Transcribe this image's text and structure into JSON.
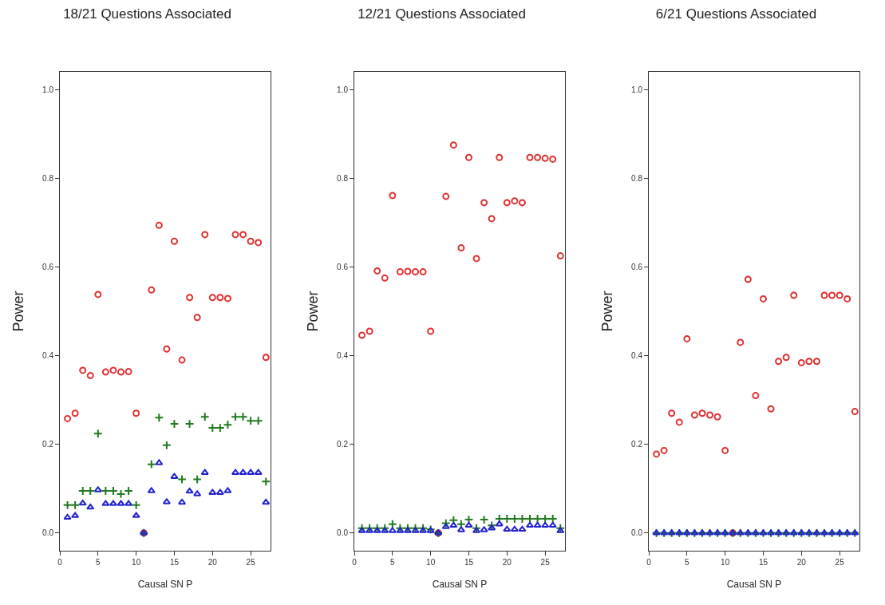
{
  "chart_data": [
    {
      "type": "scatter",
      "title": "18/21 Questions Associated",
      "xlabel": "Causal SN P",
      "ylabel": "Power",
      "x": [
        1,
        2,
        3,
        4,
        5,
        6,
        7,
        8,
        9,
        10,
        11,
        12,
        13,
        14,
        15,
        16,
        17,
        18,
        19,
        20,
        21,
        22,
        23,
        24,
        25,
        26,
        27
      ],
      "xlim": [
        0,
        27.6
      ],
      "xticks": [
        0,
        5,
        10,
        15,
        20,
        25
      ],
      "ylim": [
        -0.04,
        1.04
      ],
      "yticks": [
        {
          "value": 0,
          "label": "0.0"
        },
        {
          "value": 0.2,
          "label": "0.2"
        },
        {
          "value": 0.4,
          "label": "0.4"
        },
        {
          "value": 0.6,
          "label": "0.6"
        },
        {
          "value": 0.8,
          "label": "0.8"
        },
        {
          "value": 1,
          "label": "1.0"
        }
      ],
      "grid": false,
      "series": [
        {
          "color": "#e03030",
          "marker": "circle",
          "values": [
            0.258,
            0.27,
            0.367,
            0.355,
            0.538,
            0.363,
            0.367,
            0.363,
            0.364,
            0.27,
            0,
            0.548,
            0.694,
            0.415,
            0.658,
            0.39,
            0.531,
            0.486,
            0.673,
            0.531,
            0.531,
            0.529,
            0.673,
            0.673,
            0.658,
            0.655,
            0.396
          ]
        },
        {
          "color": "#1f7a1f",
          "marker": "cross",
          "values": [
            0.063,
            0.063,
            0.095,
            0.095,
            0.224,
            0.095,
            0.095,
            0.088,
            0.095,
            0.063,
            0,
            0.155,
            0.26,
            0.198,
            0.246,
            0.121,
            0.246,
            0.121,
            0.262,
            0.237,
            0.237,
            0.244,
            0.262,
            0.262,
            0.253,
            0.253,
            0.116
          ]
        },
        {
          "color": "#2020d0",
          "marker": "triangle",
          "values": [
            0.035,
            0.039,
            0.067,
            0.058,
            0.097,
            0.066,
            0.066,
            0.066,
            0.066,
            0.039,
            0,
            0.095,
            0.158,
            0.07,
            0.127,
            0.069,
            0.094,
            0.088,
            0.136,
            0.091,
            0.091,
            0.095,
            0.136,
            0.136,
            0.136,
            0.136,
            0.069
          ]
        }
      ]
    },
    {
      "type": "scatter",
      "title": "12/21 Questions Associated",
      "xlabel": "Causal SN P",
      "ylabel": "Power",
      "x": [
        1,
        2,
        3,
        4,
        5,
        6,
        7,
        8,
        9,
        10,
        11,
        12,
        13,
        14,
        15,
        16,
        17,
        18,
        19,
        20,
        21,
        22,
        23,
        24,
        25,
        26,
        27
      ],
      "xlim": [
        0,
        27.6
      ],
      "xticks": [
        0,
        5,
        10,
        15,
        20,
        25
      ],
      "ylim": [
        -0.04,
        1.04
      ],
      "yticks": [
        {
          "value": 0,
          "label": "0.0"
        },
        {
          "value": 0.2,
          "label": "0.2"
        },
        {
          "value": 0.4,
          "label": "0.4"
        },
        {
          "value": 0.6,
          "label": "0.6"
        },
        {
          "value": 0.8,
          "label": "0.8"
        },
        {
          "value": 1,
          "label": "1.0"
        }
      ],
      "grid": false,
      "series": [
        {
          "color": "#e03030",
          "marker": "circle",
          "values": [
            0.446,
            0.455,
            0.591,
            0.575,
            0.761,
            0.589,
            0.59,
            0.589,
            0.589,
            0.455,
            0,
            0.759,
            0.875,
            0.643,
            0.847,
            0.619,
            0.745,
            0.709,
            0.847,
            0.745,
            0.749,
            0.745,
            0.847,
            0.847,
            0.845,
            0.843,
            0.625
          ]
        },
        {
          "color": "#1f7a1f",
          "marker": "cross",
          "values": [
            0.011,
            0.011,
            0.011,
            0.011,
            0.02,
            0.011,
            0.011,
            0.011,
            0.011,
            0.008,
            0,
            0.022,
            0.029,
            0.02,
            0.03,
            0.011,
            0.03,
            0.017,
            0.032,
            0.032,
            0.032,
            0.032,
            0.032,
            0.032,
            0.032,
            0.032,
            0.011
          ]
        },
        {
          "color": "#2020d0",
          "marker": "triangle",
          "values": [
            0.005,
            0.005,
            0.005,
            0.005,
            0.005,
            0.005,
            0.005,
            0.005,
            0.005,
            0.005,
            0,
            0.014,
            0.017,
            0.007,
            0.017,
            0.005,
            0.007,
            0.011,
            0.02,
            0.008,
            0.008,
            0.008,
            0.017,
            0.017,
            0.017,
            0.017,
            0.005
          ]
        }
      ]
    },
    {
      "type": "scatter",
      "title": "6/21 Questions Associated",
      "xlabel": "Causal SN P",
      "ylabel": "Power",
      "x": [
        1,
        2,
        3,
        4,
        5,
        6,
        7,
        8,
        9,
        10,
        11,
        12,
        13,
        14,
        15,
        16,
        17,
        18,
        19,
        20,
        21,
        22,
        23,
        24,
        25,
        26,
        27
      ],
      "xlim": [
        0,
        27.6
      ],
      "xticks": [
        0,
        5,
        10,
        15,
        20,
        25
      ],
      "ylim": [
        -0.04,
        1.04
      ],
      "yticks": [
        {
          "value": 0,
          "label": "0.0"
        },
        {
          "value": 0.2,
          "label": "0.2"
        },
        {
          "value": 0.4,
          "label": "0.4"
        },
        {
          "value": 0.6,
          "label": "0.6"
        },
        {
          "value": 0.8,
          "label": "0.8"
        },
        {
          "value": 1,
          "label": "1.0"
        }
      ],
      "grid": false,
      "series": [
        {
          "color": "#e03030",
          "marker": "circle",
          "values": [
            0.178,
            0.186,
            0.27,
            0.25,
            0.438,
            0.266,
            0.27,
            0.266,
            0.262,
            0.186,
            0,
            0.43,
            0.572,
            0.31,
            0.528,
            0.28,
            0.387,
            0.396,
            0.536,
            0.384,
            0.387,
            0.387,
            0.536,
            0.536,
            0.536,
            0.528,
            0.274
          ]
        },
        {
          "color": "#1f7a1f",
          "marker": "cross",
          "values": [
            0,
            0,
            0,
            0,
            0,
            0,
            0,
            0,
            0,
            0,
            0,
            0,
            0,
            0,
            0,
            0,
            0,
            0,
            0,
            0,
            0,
            0,
            0,
            0,
            0,
            0,
            0
          ]
        },
        {
          "color": "#2020d0",
          "marker": "triangle",
          "values": [
            0,
            0,
            0,
            0,
            0,
            0,
            0,
            0,
            0,
            0,
            0,
            0,
            0,
            0,
            0,
            0,
            0,
            0,
            0,
            0,
            0,
            0,
            0,
            0,
            0,
            0,
            0
          ]
        }
      ]
    }
  ]
}
